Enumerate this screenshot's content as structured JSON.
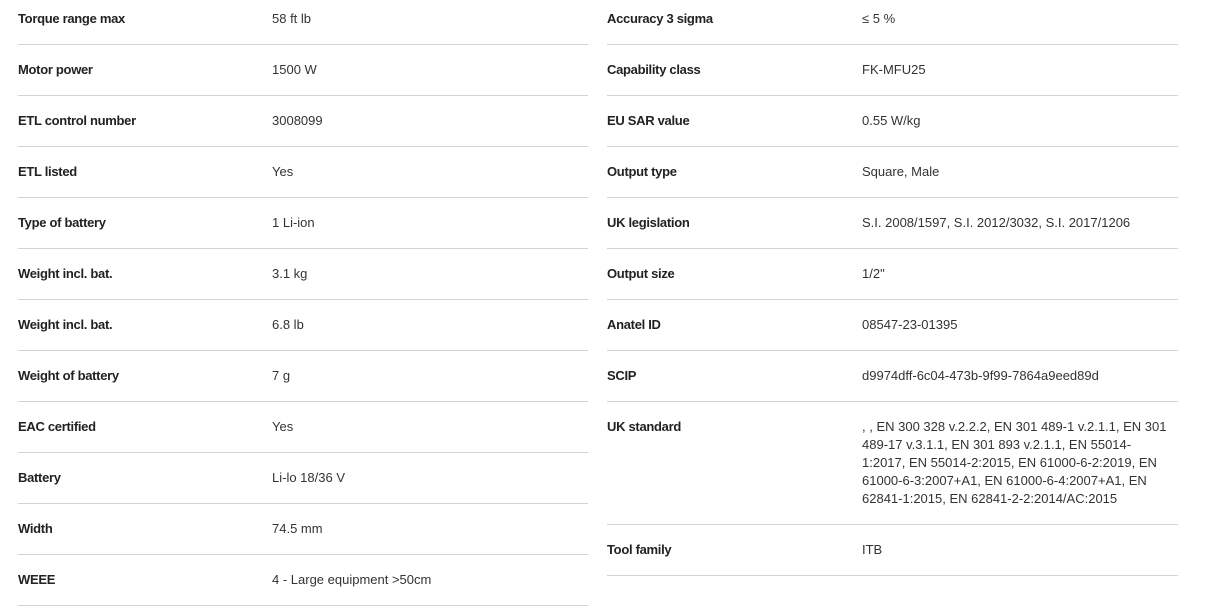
{
  "left": [
    {
      "label": "Torque range max",
      "value": "58 ft lb"
    },
    {
      "label": "Motor power",
      "value": "1500 W"
    },
    {
      "label": "ETL control number",
      "value": "3008099"
    },
    {
      "label": "ETL listed",
      "value": "Yes"
    },
    {
      "label": "Type of battery",
      "value": "1 Li-ion"
    },
    {
      "label": "Weight incl. bat.",
      "value": "3.1 kg"
    },
    {
      "label": "Weight incl. bat.",
      "value": "6.8 lb"
    },
    {
      "label": "Weight of battery",
      "value": "7 g"
    },
    {
      "label": "EAC certified",
      "value": "Yes"
    },
    {
      "label": "Battery",
      "value": "Li-lo 18/36 V"
    },
    {
      "label": "Width",
      "value": "74.5 mm"
    },
    {
      "label": "WEEE",
      "value": "4 - Large equipment >50cm"
    }
  ],
  "right": [
    {
      "label": "Accuracy 3 sigma",
      "value": "≤ 5 %"
    },
    {
      "label": "Capability class",
      "value": "FK-MFU25"
    },
    {
      "label": "EU SAR value",
      "value": "0.55 W/kg"
    },
    {
      "label": "Output type",
      "value": "Square, Male"
    },
    {
      "label": "UK legislation",
      "value": "S.I. 2008/1597, S.I. 2012/3032, S.I. 2017/1206"
    },
    {
      "label": "Output size",
      "value": "1/2\""
    },
    {
      "label": "Anatel ID",
      "value": "08547-23-01395"
    },
    {
      "label": "SCIP",
      "value": "d9974dff-6c04-473b-9f99-7864a9eed89d"
    },
    {
      "label": "UK standard",
      "value": ", , EN 300 328 v.2.2.2, EN 301 489-1 v.2.1.1, EN 301 489-17 v.3.1.1, EN 301 893 v.2.1.1, EN 55014-1:2017, EN 55014-2:2015, EN 61000-6-2:2019, EN 61000-6-3:2007+A1, EN 61000-6-4:2007+A1, EN 62841-1:2015, EN 62841-2-2:2014/AC:2015"
    },
    {
      "label": "Tool family",
      "value": "ITB"
    }
  ]
}
